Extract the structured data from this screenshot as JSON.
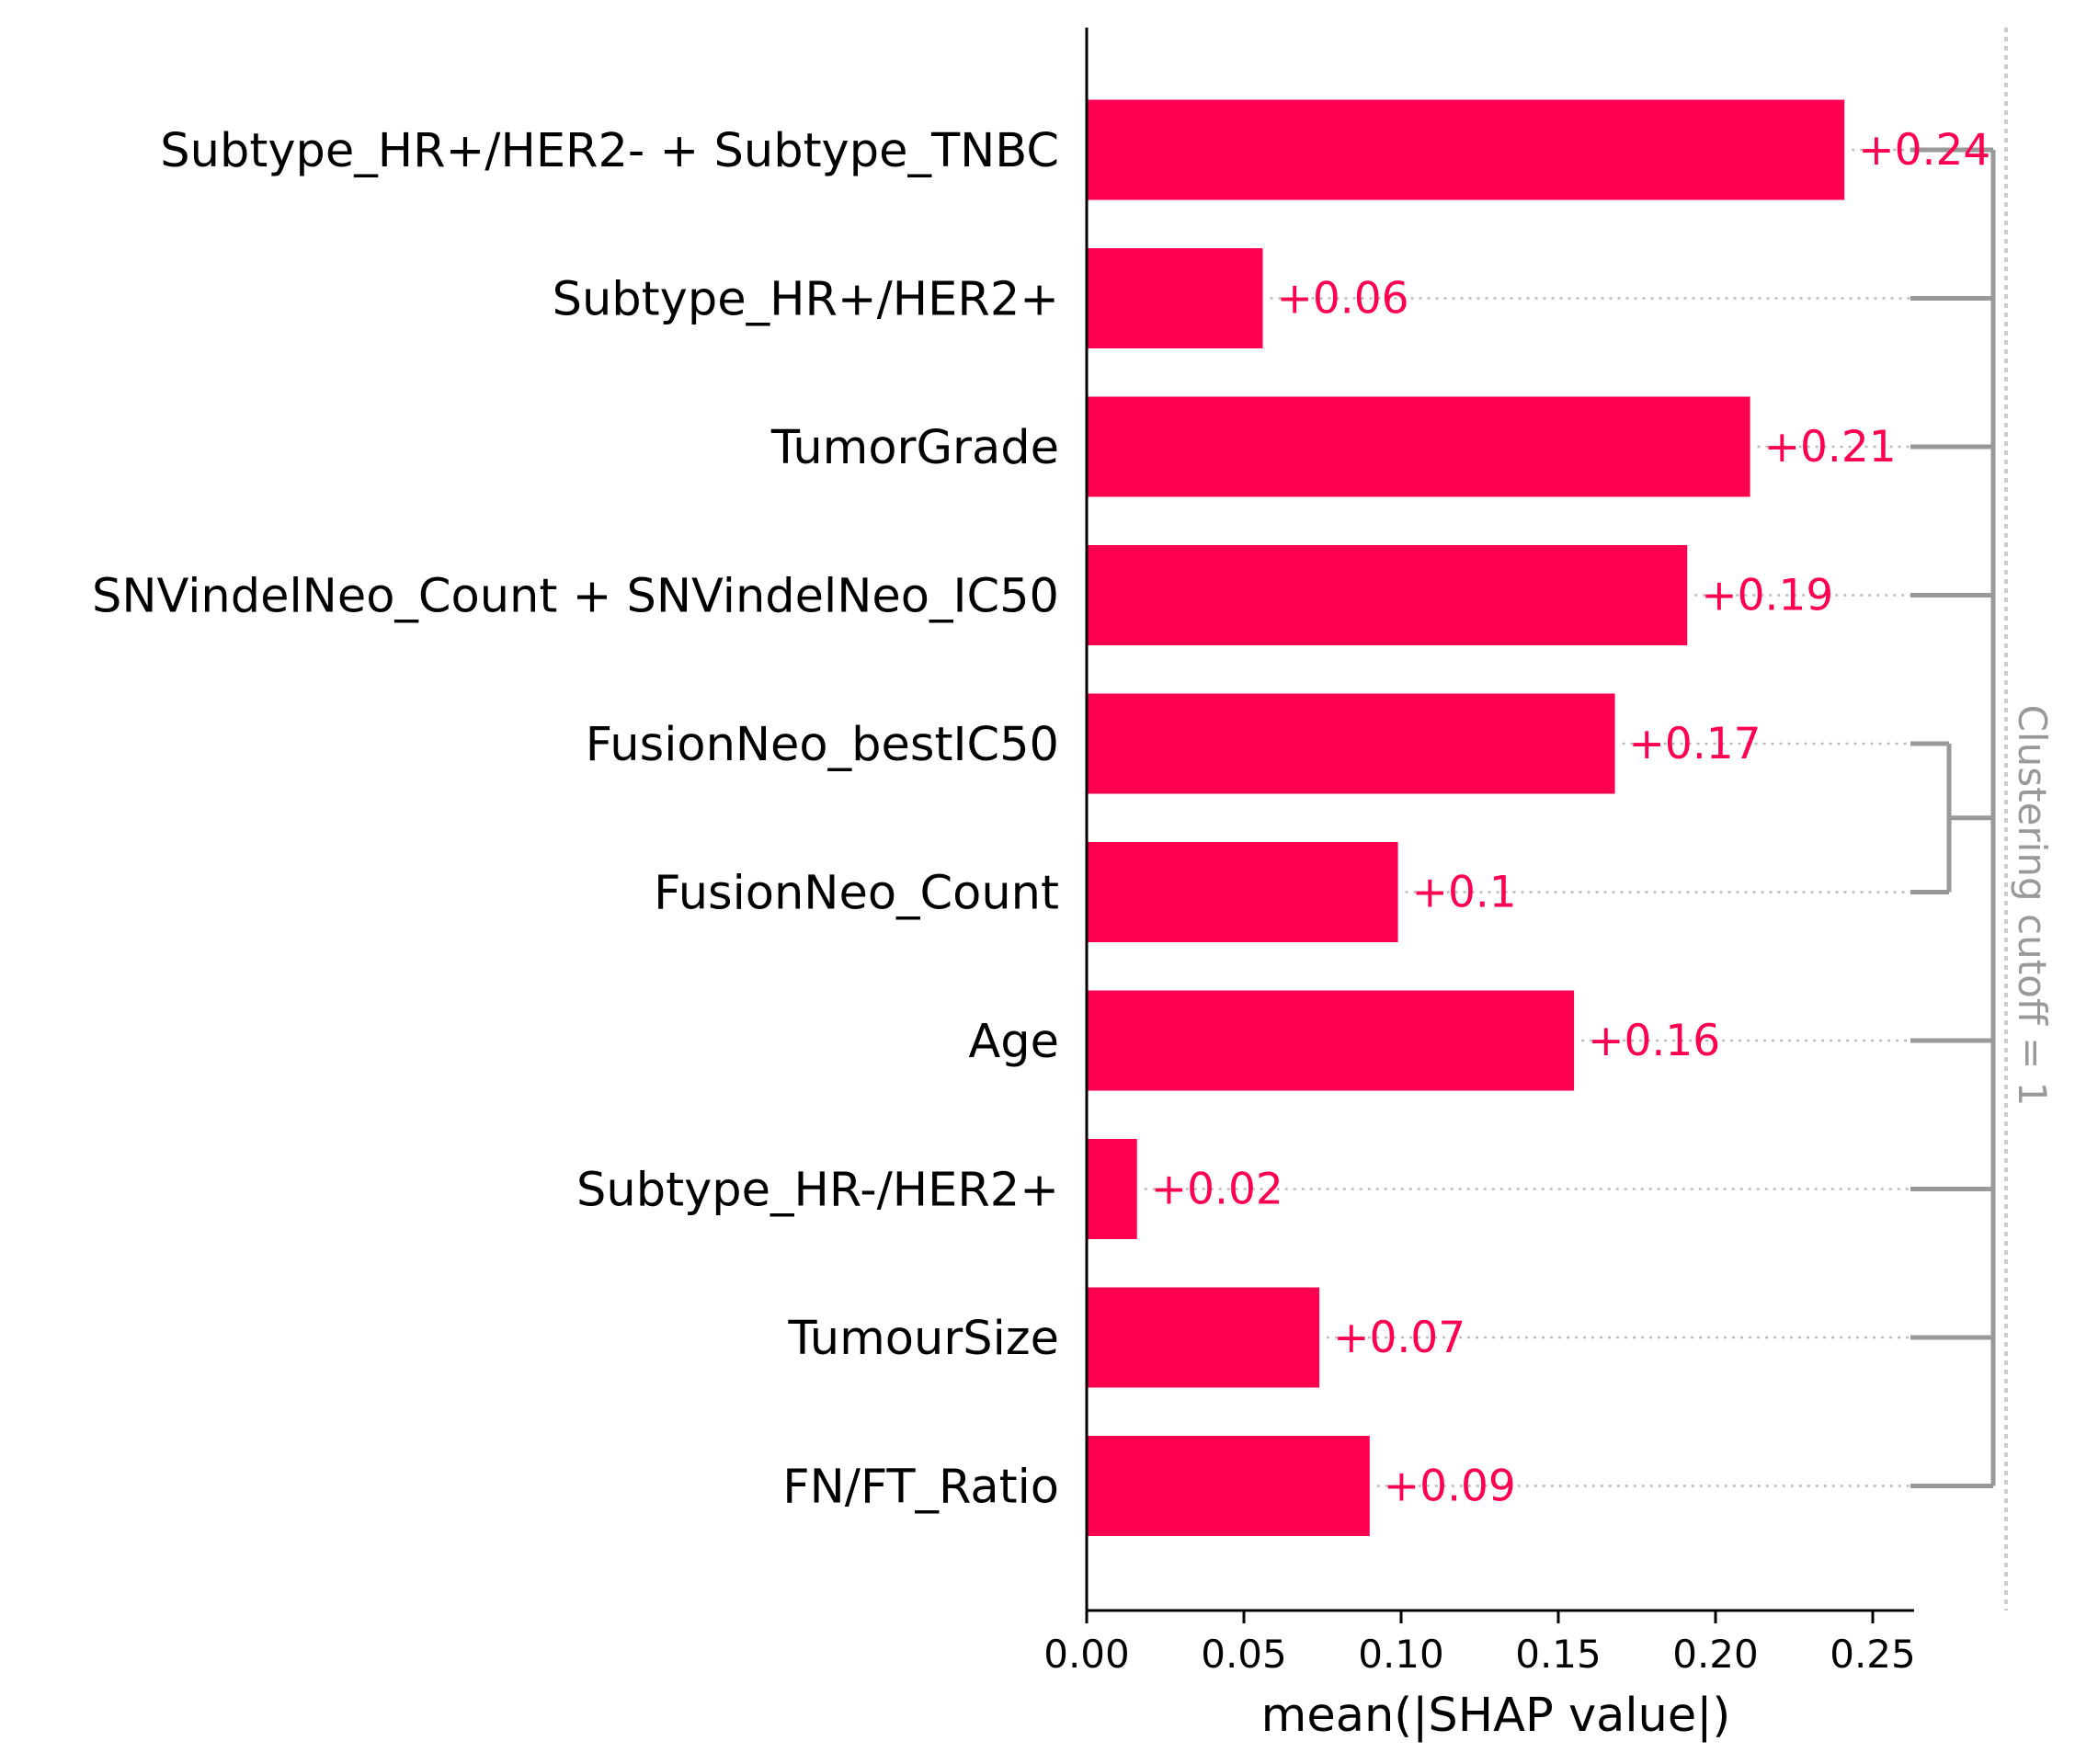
{
  "chart_data": {
    "type": "bar",
    "orientation": "horizontal",
    "categories": [
      "Subtype_HR+/HER2- + Subtype_TNBC",
      "Subtype_HR+/HER2+",
      "TumorGrade",
      "SNVindelNeo_Count + SNVindelNeo_IC50",
      "FusionNeo_bestIC50",
      "FusionNeo_Count",
      "Age",
      "Subtype_HR-/HER2+",
      "TumourSize",
      "FN/FT_Ratio"
    ],
    "values": [
      0.241,
      0.056,
      0.211,
      0.191,
      0.168,
      0.099,
      0.155,
      0.016,
      0.074,
      0.09
    ],
    "value_labels": [
      "+0.24",
      "+0.06",
      "+0.21",
      "+0.19",
      "+0.17",
      "+0.1",
      "+0.16",
      "+0.02",
      "+0.07",
      "+0.09"
    ],
    "xlabel": "mean(|SHAP value|)",
    "xlim": [
      0,
      0.265
    ],
    "xticks": [
      0,
      0.05,
      0.1,
      0.15,
      0.2,
      0.25
    ],
    "xtick_labels": [
      "0.00",
      "0.05",
      "0.10",
      "0.15",
      "0.20",
      "0.25"
    ],
    "clustering_label": "Clustering cutoff = 1",
    "clustering_groups": [
      [
        4,
        5
      ]
    ],
    "colors": {
      "bar": "#ff0051",
      "dendrogram": "#999999",
      "cutoff_line": "#cccccc",
      "axis": "#000000"
    }
  }
}
